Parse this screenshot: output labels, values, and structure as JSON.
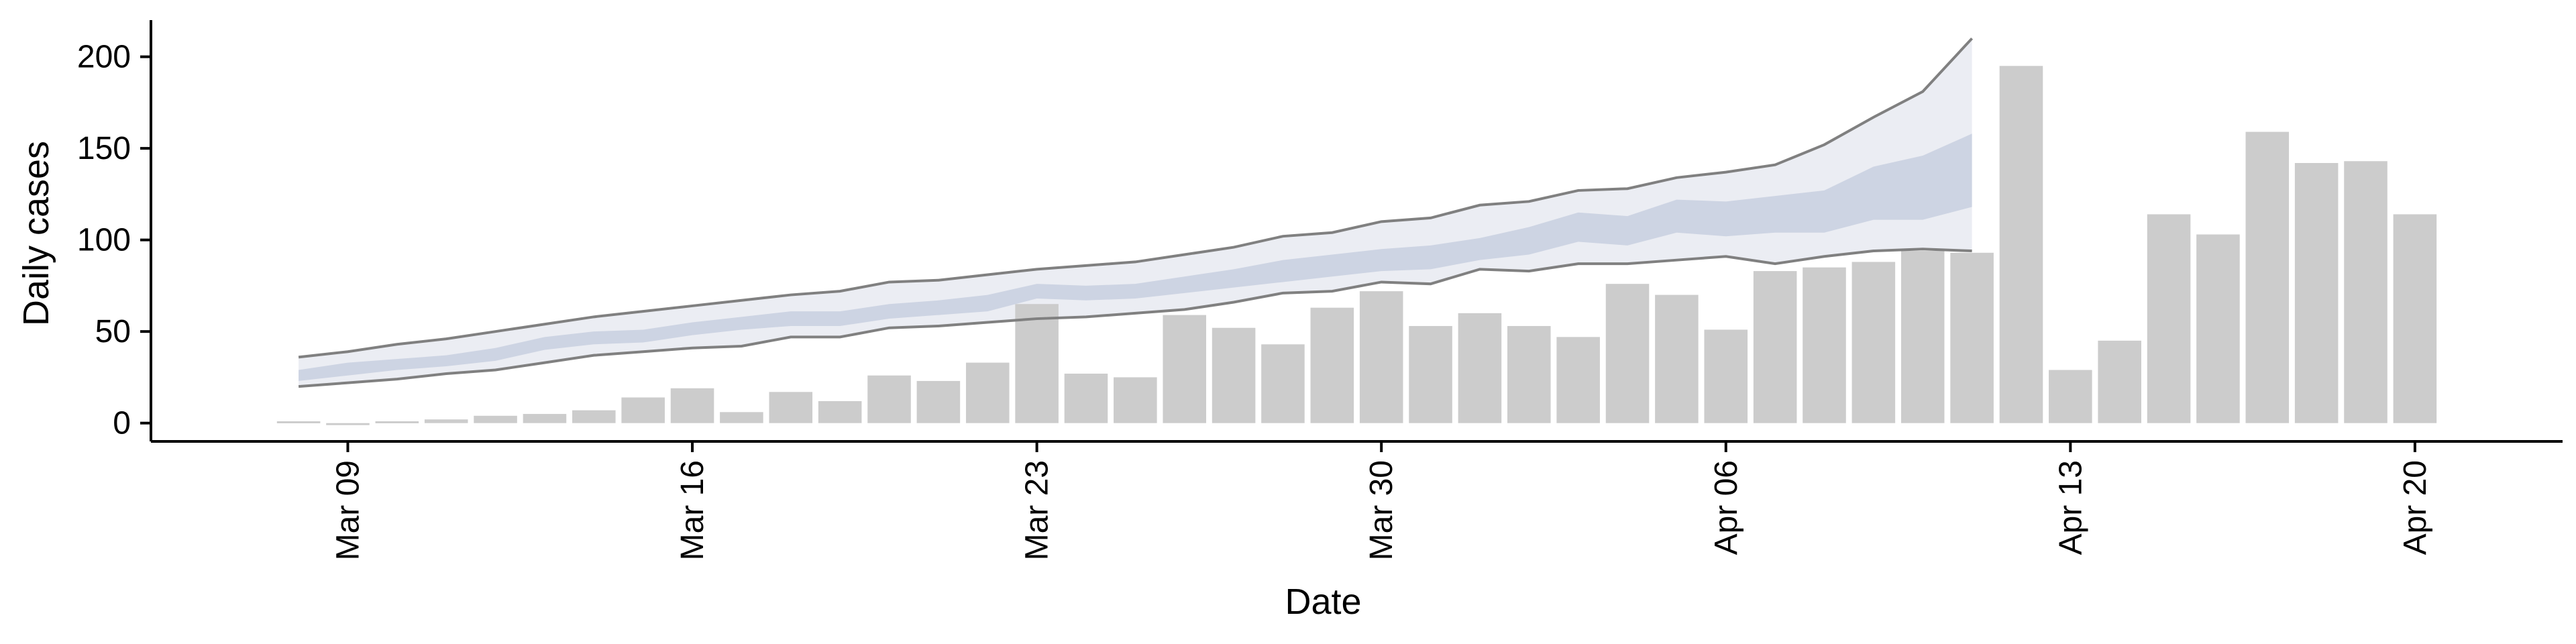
{
  "chart_data": {
    "type": "bar",
    "xlabel": "Date",
    "ylabel": "Daily cases",
    "ylim": [
      -10,
      220
    ],
    "yticks": [
      0,
      50,
      100,
      150,
      200
    ],
    "xlim": [
      "2020-03-05",
      "2020-04-23"
    ],
    "xticks": [
      {
        "date": "2020-03-09",
        "label": "Mar 09"
      },
      {
        "date": "2020-03-16",
        "label": "Mar 16"
      },
      {
        "date": "2020-03-23",
        "label": "Mar 23"
      },
      {
        "date": "2020-03-30",
        "label": "Mar 30"
      },
      {
        "date": "2020-04-06",
        "label": "Apr 06"
      },
      {
        "date": "2020-04-13",
        "label": "Apr 13"
      },
      {
        "date": "2020-04-20",
        "label": "Apr 20"
      }
    ],
    "bars": {
      "dates": [
        "2020-03-08",
        "2020-03-09",
        "2020-03-10",
        "2020-03-11",
        "2020-03-12",
        "2020-03-13",
        "2020-03-14",
        "2020-03-15",
        "2020-03-16",
        "2020-03-17",
        "2020-03-18",
        "2020-03-19",
        "2020-03-20",
        "2020-03-21",
        "2020-03-22",
        "2020-03-23",
        "2020-03-24",
        "2020-03-25",
        "2020-03-26",
        "2020-03-27",
        "2020-03-28",
        "2020-03-29",
        "2020-03-30",
        "2020-03-31",
        "2020-04-01",
        "2020-04-02",
        "2020-04-03",
        "2020-04-04",
        "2020-04-05",
        "2020-04-06",
        "2020-04-07",
        "2020-04-08",
        "2020-04-09",
        "2020-04-10",
        "2020-04-11",
        "2020-04-12",
        "2020-04-13",
        "2020-04-14",
        "2020-04-15",
        "2020-04-16",
        "2020-04-17",
        "2020-04-18",
        "2020-04-19",
        "2020-04-20"
      ],
      "values": [
        1,
        0,
        1,
        2,
        4,
        5,
        7,
        14,
        19,
        6,
        17,
        12,
        26,
        23,
        33,
        65,
        27,
        25,
        59,
        52,
        43,
        63,
        72,
        53,
        60,
        53,
        47,
        76,
        70,
        51,
        83,
        85,
        88,
        94,
        93,
        195,
        29,
        45,
        114,
        103,
        159,
        142,
        143,
        114
      ],
      "color": "#cccccc"
    },
    "projection": {
      "dates": [
        "2020-03-08",
        "2020-03-09",
        "2020-03-10",
        "2020-03-11",
        "2020-03-12",
        "2020-03-13",
        "2020-03-14",
        "2020-03-15",
        "2020-03-16",
        "2020-03-17",
        "2020-03-18",
        "2020-03-19",
        "2020-03-20",
        "2020-03-21",
        "2020-03-22",
        "2020-03-23",
        "2020-03-24",
        "2020-03-25",
        "2020-03-26",
        "2020-03-27",
        "2020-03-28",
        "2020-03-29",
        "2020-03-30",
        "2020-03-31",
        "2020-04-01",
        "2020-04-02",
        "2020-04-03",
        "2020-04-04",
        "2020-04-05",
        "2020-04-06",
        "2020-04-07",
        "2020-04-08",
        "2020-04-09",
        "2020-04-10",
        "2020-04-11"
      ],
      "outer_lower": [
        20,
        22,
        24,
        27,
        29,
        33,
        37,
        39,
        41,
        42,
        47,
        47,
        52,
        53,
        55,
        57,
        58,
        60,
        62,
        66,
        71,
        72,
        77,
        76,
        84,
        83,
        87,
        87,
        89,
        91,
        87,
        91,
        94,
        95,
        94
      ],
      "outer_upper": [
        36,
        39,
        43,
        46,
        50,
        54,
        58,
        61,
        64,
        67,
        70,
        72,
        77,
        78,
        81,
        84,
        86,
        88,
        92,
        96,
        102,
        104,
        110,
        112,
        119,
        121,
        127,
        128,
        134,
        137,
        141,
        152,
        167,
        181,
        210
      ],
      "inner_lower": [
        23,
        26,
        29,
        31,
        34,
        40,
        43,
        44,
        48,
        51,
        53,
        53,
        57,
        59,
        61,
        68,
        67,
        68,
        71,
        74,
        77,
        80,
        83,
        84,
        89,
        92,
        99,
        97,
        104,
        102,
        104,
        104,
        111,
        111,
        118
      ],
      "inner_upper": [
        29,
        33,
        35,
        37,
        41,
        47,
        50,
        51,
        55,
        58,
        61,
        61,
        65,
        67,
        70,
        76,
        75,
        76,
        80,
        84,
        89,
        92,
        95,
        97,
        101,
        107,
        115,
        113,
        122,
        121,
        124,
        127,
        140,
        146,
        158
      ],
      "median": [
        26,
        29,
        32,
        34,
        37,
        43,
        46,
        47,
        51,
        54,
        57,
        57,
        61,
        63,
        65,
        72,
        71,
        72,
        75,
        79,
        83,
        86,
        89,
        90,
        95,
        99,
        107,
        105,
        113,
        111,
        114,
        115,
        125,
        128,
        138
      ],
      "outer_color": "#ebedf3",
      "inner_color": "#c8cfdf",
      "line_color": "#808080"
    }
  }
}
